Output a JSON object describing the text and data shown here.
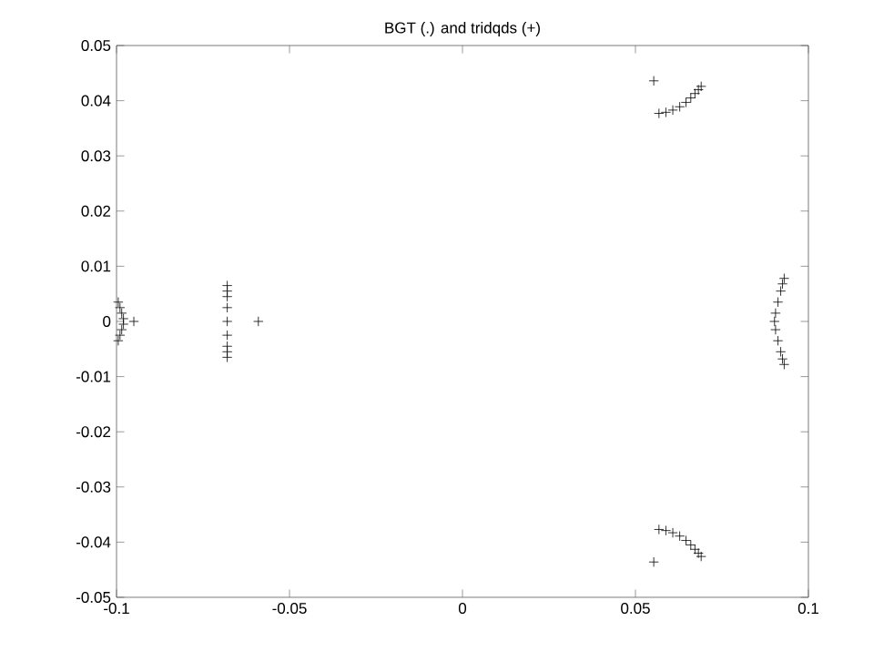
{
  "chart_data": {
    "type": "scatter",
    "title": "BGT (.)   and   tridqds (+)",
    "x": [
      -0.0995,
      -0.099,
      -0.0985,
      -0.098,
      -0.098,
      -0.0985,
      -0.099,
      -0.0995,
      -0.095,
      -0.068,
      -0.068,
      -0.068,
      -0.068,
      -0.068,
      -0.068,
      -0.068,
      -0.068,
      -0.068,
      -0.059,
      0.0553,
      0.0568,
      0.0588,
      0.0608,
      0.0628,
      0.0646,
      0.066,
      0.0672,
      0.0682,
      0.069,
      0.0553,
      0.0568,
      0.0588,
      0.0608,
      0.0628,
      0.0646,
      0.066,
      0.0672,
      0.0682,
      0.069,
      0.093,
      0.0925,
      0.092,
      0.0912,
      0.0905,
      0.0902,
      0.0905,
      0.0912,
      0.092,
      0.0925,
      0.093
    ],
    "values": [
      0.0035,
      0.0025,
      0.0015,
      0.0005,
      -0.0005,
      -0.0015,
      -0.0025,
      -0.0035,
      0,
      0.0065,
      0.0055,
      0.0045,
      0.0025,
      0,
      -0.0025,
      -0.0045,
      -0.0055,
      -0.0065,
      0,
      0.0436,
      0.0377,
      0.0379,
      0.0383,
      0.0389,
      0.0397,
      0.0405,
      0.0413,
      0.042,
      0.0426,
      -0.0436,
      -0.0377,
      -0.0379,
      -0.0383,
      -0.0389,
      -0.0397,
      -0.0405,
      -0.0413,
      -0.042,
      -0.0426,
      0.0078,
      0.0068,
      0.0055,
      0.0035,
      0.0015,
      0,
      -0.0015,
      -0.0035,
      -0.0055,
      -0.0068,
      -0.0078
    ],
    "color": "#000000",
    "marker": "cross",
    "xlim": [
      -0.1,
      0.1
    ],
    "ylim": [
      -0.05,
      0.05
    ],
    "xticks": [
      -0.1,
      -0.05,
      0,
      0.05,
      0.1
    ],
    "yticks": [
      -0.05,
      -0.04,
      -0.03,
      -0.02,
      -0.01,
      0,
      0.01,
      0.02,
      0.03,
      0.04,
      0.05
    ],
    "grid": false
  }
}
